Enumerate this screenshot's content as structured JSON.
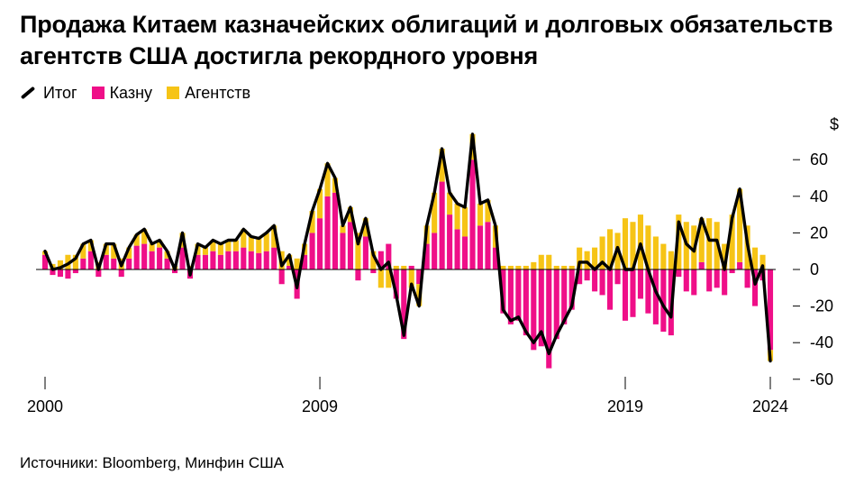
{
  "title": "Продажа Китаем казначейских облигаций и долговых обязательств агентств США достигла рекордного уровня",
  "legend": [
    {
      "label": "Итог",
      "color": "#000000",
      "kind": "line"
    },
    {
      "label": "Казну",
      "color": "#ef0f88",
      "kind": "bar"
    },
    {
      "label": "Агентств",
      "color": "#f6c416",
      "kind": "bar"
    }
  ],
  "source": "Источники: Bloomberg, Минфин США",
  "chart_data": {
    "type": "bar",
    "unit_label": "$",
    "ylim": [
      -60,
      70
    ],
    "yticks": [
      60,
      40,
      20,
      0,
      -20,
      -40,
      -60
    ],
    "ytick_labels": [
      "60",
      "40",
      "20",
      "0",
      "-20",
      "-40",
      "-60"
    ],
    "xticks": [
      {
        "index": 0,
        "label": "2000"
      },
      {
        "index": 36,
        "label": "2009"
      },
      {
        "index": 76,
        "label": "2019"
      },
      {
        "index": 95,
        "label": "2024"
      }
    ],
    "series": [
      {
        "name": "Казну",
        "color": "#ef0f88",
        "values": [
          8,
          -3,
          -4,
          -5,
          -2,
          6,
          10,
          -4,
          8,
          6,
          -4,
          6,
          13,
          14,
          10,
          12,
          6,
          -2,
          12,
          -5,
          8,
          8,
          10,
          8,
          10,
          10,
          12,
          10,
          9,
          10,
          12,
          -8,
          2,
          -16,
          8,
          20,
          28,
          40,
          42,
          20,
          26,
          -6,
          18,
          -2,
          10,
          14,
          -16,
          -38,
          2,
          -8,
          14,
          20,
          48,
          30,
          22,
          18,
          60,
          24,
          26,
          12,
          -24,
          -30,
          -28,
          -36,
          -44,
          -42,
          -54,
          -38,
          -30,
          -22,
          -8,
          -6,
          -12,
          -14,
          -22,
          -8,
          -28,
          -26,
          -16,
          -24,
          -30,
          -34,
          -36,
          -4,
          -12,
          -14,
          4,
          -12,
          -10,
          -14,
          -2,
          4,
          -10,
          -20,
          -6,
          -44
        ],
        "color_key": "pink"
      },
      {
        "name": "Агентств",
        "color": "#f6c416",
        "values": [
          2,
          3,
          5,
          8,
          8,
          8,
          6,
          4,
          6,
          8,
          6,
          6,
          6,
          8,
          4,
          4,
          4,
          2,
          8,
          2,
          6,
          4,
          6,
          6,
          6,
          6,
          10,
          8,
          8,
          10,
          12,
          10,
          6,
          6,
          6,
          12,
          16,
          18,
          8,
          4,
          8,
          20,
          10,
          10,
          -10,
          -10,
          2,
          2,
          -10,
          -12,
          10,
          22,
          18,
          12,
          14,
          16,
          14,
          12,
          12,
          12,
          2,
          2,
          2,
          2,
          4,
          8,
          8,
          2,
          2,
          2,
          12,
          10,
          12,
          18,
          22,
          20,
          28,
          26,
          30,
          24,
          18,
          14,
          10,
          30,
          26,
          24,
          24,
          28,
          26,
          14,
          30,
          40,
          24,
          12,
          8,
          -6
        ]
      }
    ],
    "total_series_name": "Итог"
  }
}
